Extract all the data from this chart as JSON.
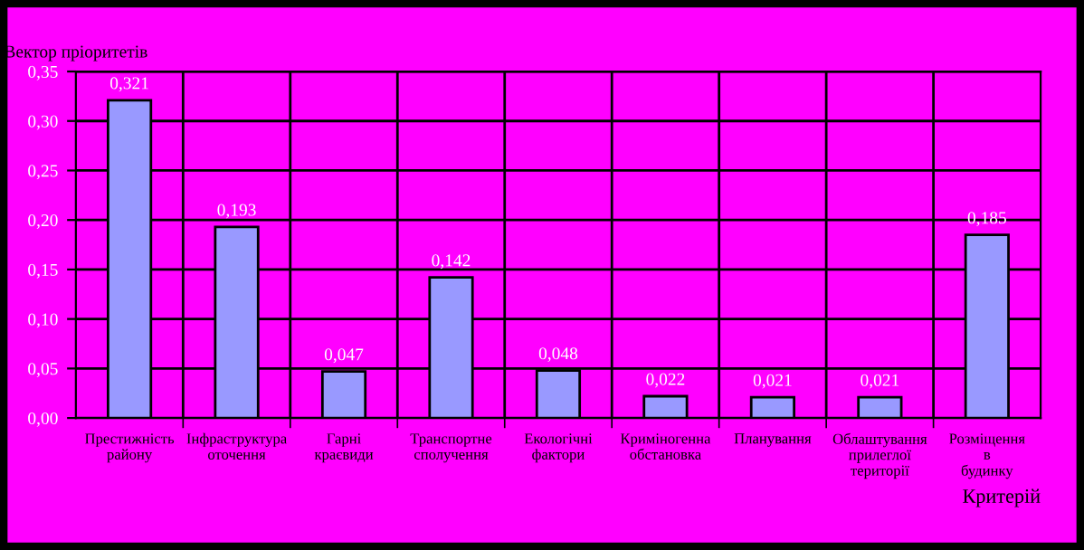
{
  "chart_data": {
    "type": "bar",
    "ylabel": "Вектор пріоритетів",
    "xlabel": "Критерій",
    "categories": [
      "Престижність району",
      "Інфраструктура оточення",
      "Гарні краєвиди",
      "Транспортне сполучення",
      "Екологічні фактори",
      "Криміногенна обстановка",
      "Планування",
      "Облаштування прилеглої території",
      "Розміщення в будинку"
    ],
    "values": [
      0.321,
      0.193,
      0.047,
      0.142,
      0.048,
      0.022,
      0.021,
      0.021,
      0.185
    ],
    "value_labels": [
      "0,321",
      "0,193",
      "0,047",
      "0,142",
      "0,048",
      "0,022",
      "0,021",
      "0,021",
      "0,185"
    ],
    "color": "#9999ff",
    "ylim": [
      0,
      0.35
    ],
    "yticks": [
      {
        "value": 0,
        "label": "0,00"
      },
      {
        "value": 0.05,
        "label": "0,05"
      },
      {
        "value": 0.1,
        "label": "0,10"
      },
      {
        "value": 0.15,
        "label": "0,15"
      },
      {
        "value": 0.2,
        "label": "0,20"
      },
      {
        "value": 0.25,
        "label": "0,25"
      },
      {
        "value": 0.3,
        "label": "0,30"
      },
      {
        "value": 0.35,
        "label": "0,35"
      }
    ],
    "grid": true
  }
}
